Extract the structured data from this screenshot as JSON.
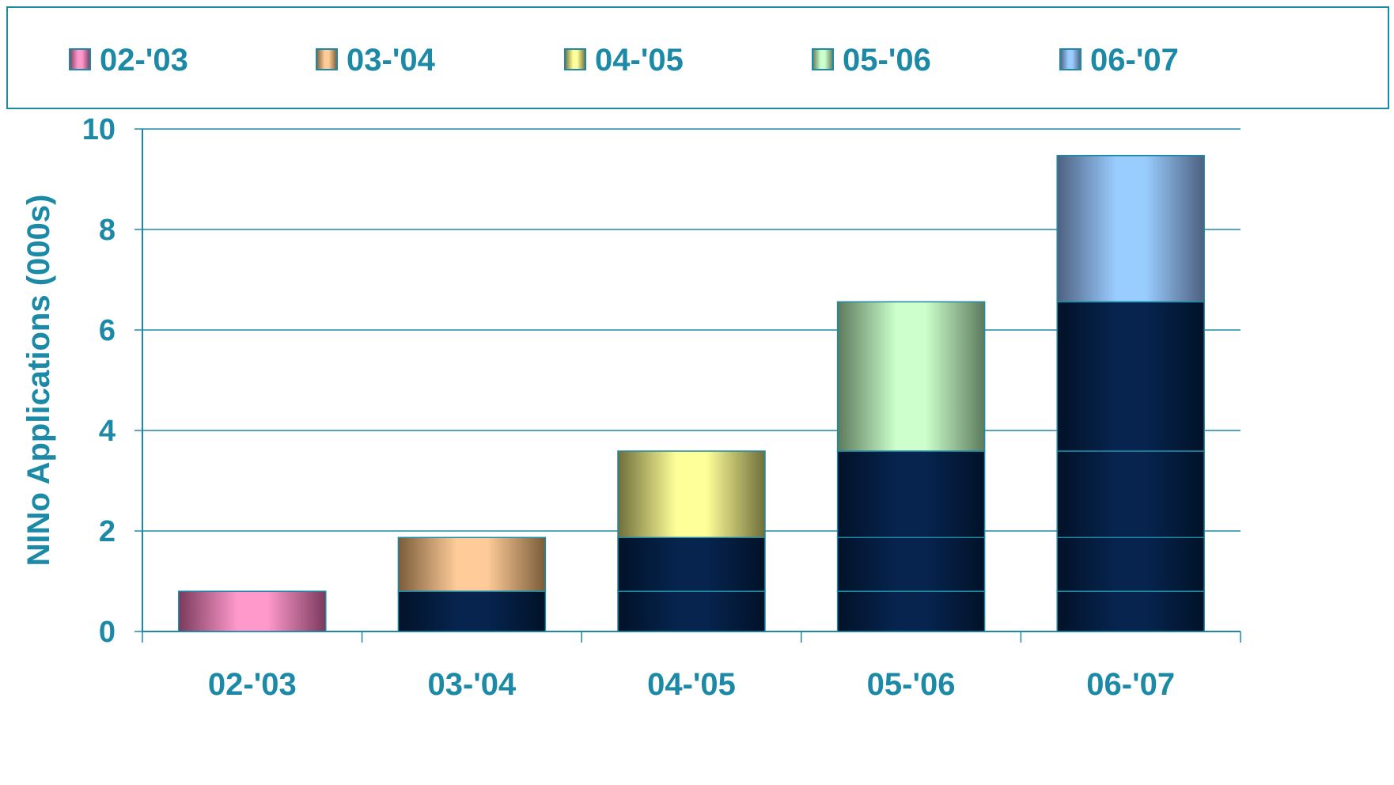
{
  "chart_data": {
    "type": "bar",
    "stacked": true,
    "categories": [
      "02-'03",
      "03-'04",
      "04-'05",
      "05-'06",
      "06-'07"
    ],
    "series": [
      {
        "name": "02-'03",
        "values": [
          0.8,
          0.8,
          0.8,
          0.8,
          0.8
        ],
        "color": "#ff99cc",
        "edge": "#7a3a5c",
        "carry": "#06244e"
      },
      {
        "name": "03-'04",
        "values": [
          0,
          1.07,
          1.07,
          1.07,
          1.07
        ],
        "color": "#ffcc99",
        "edge": "#7a5c3a",
        "carry": "#06244e"
      },
      {
        "name": "04-'05",
        "values": [
          0,
          0,
          1.72,
          1.72,
          1.72
        ],
        "color": "#ffff99",
        "edge": "#6e6e3a",
        "carry": "#06244e"
      },
      {
        "name": "05-'06",
        "values": [
          0,
          0,
          0,
          2.97,
          2.97
        ],
        "color": "#ccffcc",
        "edge": "#5c7a5c",
        "carry": "#06244e"
      },
      {
        "name": "06-'07",
        "values": [
          0,
          0,
          0,
          0,
          2.91
        ],
        "color": "#99ccff",
        "edge": "#4e6080",
        "carry": "#06244e"
      }
    ],
    "xlabel": "",
    "ylabel": "NINo Applications (000s)",
    "ylim": [
      0,
      10
    ],
    "yticks": [
      0,
      2,
      4,
      6,
      8,
      10
    ],
    "grid": true,
    "legend_position": "top"
  }
}
